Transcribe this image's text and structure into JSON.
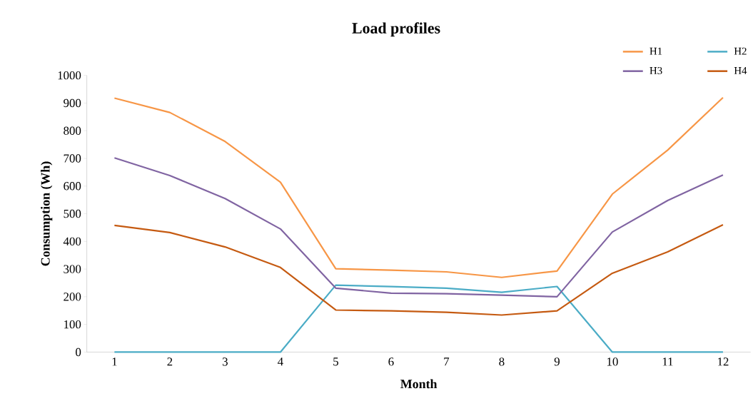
{
  "chart_data": {
    "type": "line",
    "title": "Load profiles",
    "xlabel": "Month",
    "ylabel": "Consumption (Wh)",
    "categories": [
      "1",
      "2",
      "3",
      "4",
      "5",
      "6",
      "7",
      "8",
      "9",
      "10",
      "11",
      "12"
    ],
    "series": [
      {
        "name": "H1",
        "color": "#f79646",
        "values": [
          918,
          866,
          761,
          614,
          301,
          296,
          290,
          270,
          293,
          571,
          730,
          920
        ]
      },
      {
        "name": "H2",
        "color": "#4bacc6",
        "values": [
          0,
          0,
          0,
          0,
          242,
          237,
          231,
          216,
          237,
          0,
          0,
          0
        ]
      },
      {
        "name": "H3",
        "color": "#8064a2",
        "values": [
          702,
          638,
          555,
          445,
          231,
          213,
          211,
          206,
          200,
          434,
          548,
          640
        ]
      },
      {
        "name": "H4",
        "color": "#c55a11",
        "values": [
          458,
          432,
          380,
          306,
          152,
          149,
          144,
          134,
          149,
          285,
          362,
          460
        ]
      }
    ],
    "ylim": [
      0,
      1000
    ],
    "yticks": [
      0,
      100,
      200,
      300,
      400,
      500,
      600,
      700,
      800,
      900,
      1000
    ],
    "grid": false,
    "legend": "top right",
    "marker": "none",
    "line_style": "solid"
  }
}
